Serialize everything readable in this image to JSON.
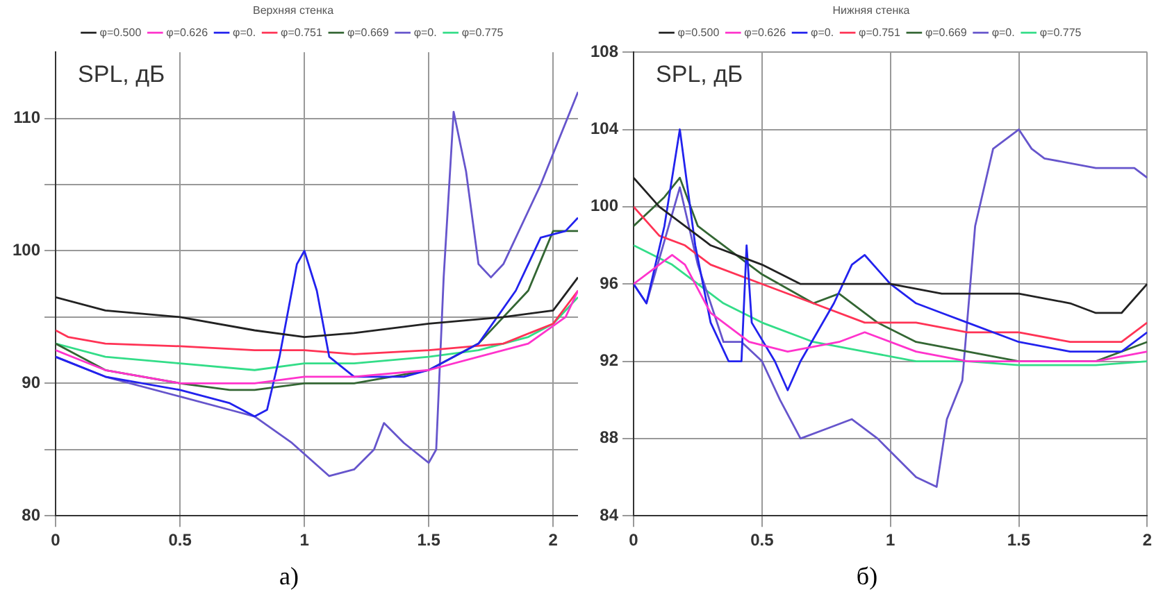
{
  "chart_data": [
    {
      "type": "line",
      "legend_title": "Верхняя стенка",
      "ylabel": "SPL, дБ",
      "annotations": [
        "а)"
      ],
      "xlim": [
        0,
        2.1
      ],
      "xticks": [
        0,
        0.5,
        1,
        1.5,
        2
      ],
      "ylim": [
        80,
        115
      ],
      "yticks": [
        80,
        {
          "value": 85,
          "label": null
        },
        90,
        {
          "value": 95,
          "label": null
        },
        100,
        {
          "value": 105,
          "label": null
        },
        110
      ],
      "grid": true,
      "legend": "top",
      "marker": "none",
      "line_style": "solid",
      "series": [
        {
          "name": "φ=0.500",
          "color": "#222222",
          "x": [
            0,
            0.2,
            0.5,
            0.8,
            1.0,
            1.2,
            1.5,
            1.8,
            2.0,
            2.1
          ],
          "values": [
            96.5,
            95.5,
            95,
            94,
            93.5,
            93.8,
            94.5,
            95,
            95.5,
            98
          ]
        },
        {
          "name": "φ=0.626",
          "color": "#ff33cc",
          "x": [
            0,
            0.2,
            0.5,
            0.8,
            1.0,
            1.2,
            1.5,
            1.7,
            1.9,
            2.05,
            2.1
          ],
          "values": [
            92.5,
            91,
            90,
            90,
            90.5,
            90.5,
            91,
            92,
            93,
            95,
            97
          ]
        },
        {
          "name": "φ=0.",
          "color": "#2222ee",
          "x": [
            0,
            0.2,
            0.5,
            0.7,
            0.8,
            0.85,
            0.9,
            0.97,
            1.0,
            1.05,
            1.1,
            1.2,
            1.4,
            1.5,
            1.7,
            1.85,
            1.95,
            2.05,
            2.1
          ],
          "values": [
            92,
            90.5,
            89.5,
            88.5,
            87.5,
            88,
            92,
            99,
            100,
            97,
            92,
            90.5,
            90.5,
            91,
            93,
            97,
            101,
            101.5,
            102.5
          ]
        },
        {
          "name": "φ=0.751",
          "color": "#ff3355",
          "x": [
            0,
            0.05,
            0.2,
            0.5,
            0.8,
            1.0,
            1.2,
            1.5,
            1.8,
            2.0,
            2.1
          ],
          "values": [
            94,
            93.5,
            93,
            92.8,
            92.5,
            92.5,
            92.2,
            92.5,
            93,
            94.5,
            97
          ]
        },
        {
          "name": "φ=0.669",
          "color": "#336633",
          "x": [
            0,
            0.2,
            0.5,
            0.7,
            0.8,
            1.0,
            1.2,
            1.5,
            1.7,
            1.9,
            2.0,
            2.1
          ],
          "values": [
            93,
            91,
            90,
            89.5,
            89.5,
            90,
            90,
            91,
            93,
            97,
            101.5,
            101.5
          ]
        },
        {
          "name": "φ=0.",
          "color": "#6655cc",
          "x": [
            0,
            0.2,
            0.5,
            0.7,
            0.8,
            0.95,
            1.1,
            1.2,
            1.28,
            1.32,
            1.4,
            1.5,
            1.53,
            1.56,
            1.6,
            1.65,
            1.7,
            1.75,
            1.8,
            1.95,
            2.1
          ],
          "values": [
            92,
            90.5,
            89,
            88,
            87.5,
            85.5,
            83,
            83.5,
            85,
            87,
            85.5,
            84,
            85,
            98,
            110.5,
            106,
            99,
            98,
            99,
            105,
            112
          ]
        },
        {
          "name": "φ=0.775",
          "color": "#33dd88",
          "x": [
            0,
            0.2,
            0.5,
            0.8,
            1.0,
            1.2,
            1.5,
            1.7,
            1.9,
            2.0,
            2.1
          ],
          "values": [
            93,
            92,
            91.5,
            91,
            91.5,
            91.5,
            92,
            92.5,
            93.5,
            94.5,
            96.5
          ]
        }
      ]
    },
    {
      "type": "line",
      "legend_title": "Нижняя стенка",
      "ylabel": "SPL, дБ",
      "annotations": [
        "б)"
      ],
      "xlim": [
        0,
        2.0
      ],
      "xticks": [
        0,
        0.5,
        1,
        1.5,
        2
      ],
      "ylim": [
        84,
        108
      ],
      "yticks": [
        84,
        88,
        92,
        96,
        100,
        104,
        108
      ],
      "grid": true,
      "legend": "top",
      "marker": "none",
      "line_style": "solid",
      "series": [
        {
          "name": "φ=0.500",
          "color": "#222222",
          "x": [
            0,
            0.1,
            0.2,
            0.3,
            0.5,
            0.65,
            0.8,
            1.0,
            1.2,
            1.5,
            1.7,
            1.8,
            1.9,
            2.0
          ],
          "values": [
            101.5,
            100,
            99,
            98,
            97,
            96,
            96,
            96,
            95.5,
            95.5,
            95,
            94.5,
            94.5,
            96
          ]
        },
        {
          "name": "φ=0.626",
          "color": "#ff33cc",
          "x": [
            0,
            0.15,
            0.2,
            0.3,
            0.45,
            0.6,
            0.8,
            0.9,
            1.1,
            1.3,
            1.6,
            1.8,
            2.0
          ],
          "values": [
            96,
            97.5,
            97,
            94.5,
            93,
            92.5,
            93,
            93.5,
            92.5,
            92,
            92,
            92,
            92.5
          ]
        },
        {
          "name": "φ=0.",
          "color": "#2222ee",
          "x": [
            0,
            0.05,
            0.12,
            0.18,
            0.24,
            0.3,
            0.37,
            0.42,
            0.44,
            0.46,
            0.55,
            0.6,
            0.65,
            0.78,
            0.85,
            0.9,
            1.0,
            1.1,
            1.2,
            1.3,
            1.5,
            1.7,
            1.9,
            2.0
          ],
          "values": [
            96,
            95,
            99,
            104,
            98,
            94,
            92,
            92,
            98,
            94,
            92,
            90.5,
            92,
            95,
            97,
            97.5,
            96,
            95,
            94.5,
            94,
            93,
            92.5,
            92.5,
            93.5
          ]
        },
        {
          "name": "φ=0.751",
          "color": "#ff3355",
          "x": [
            0,
            0.1,
            0.2,
            0.3,
            0.5,
            0.7,
            0.9,
            1.1,
            1.3,
            1.5,
            1.7,
            1.9,
            2.0
          ],
          "values": [
            100,
            98.5,
            98,
            97,
            96,
            95,
            94,
            94,
            93.5,
            93.5,
            93,
            93,
            94
          ]
        },
        {
          "name": "φ=0.669",
          "color": "#336633",
          "x": [
            0,
            0.12,
            0.18,
            0.25,
            0.35,
            0.5,
            0.7,
            0.8,
            0.95,
            1.1,
            1.3,
            1.5,
            1.8,
            2.0
          ],
          "values": [
            99,
            100.5,
            101.5,
            99,
            98,
            96.5,
            95,
            95.5,
            94,
            93,
            92.5,
            92,
            92,
            93
          ]
        },
        {
          "name": "φ=0.",
          "color": "#6655cc",
          "x": [
            0,
            0.05,
            0.18,
            0.25,
            0.35,
            0.42,
            0.5,
            0.57,
            0.65,
            0.75,
            0.85,
            0.95,
            1.1,
            1.18,
            1.22,
            1.28,
            1.33,
            1.4,
            1.5,
            1.55,
            1.6,
            1.8,
            1.95,
            2.0
          ],
          "values": [
            96,
            95,
            101,
            97,
            93,
            93,
            92,
            90,
            88,
            88.5,
            89,
            88,
            86,
            85.5,
            89,
            91,
            99,
            103,
            104,
            103,
            102.5,
            102,
            102,
            101.5
          ]
        },
        {
          "name": "φ=0.775",
          "color": "#33dd88",
          "x": [
            0,
            0.15,
            0.25,
            0.35,
            0.5,
            0.7,
            0.9,
            1.1,
            1.3,
            1.5,
            1.8,
            2.0
          ],
          "values": [
            98,
            97,
            96,
            95,
            94,
            93,
            92.5,
            92,
            92,
            91.8,
            91.8,
            92
          ]
        }
      ]
    }
  ]
}
